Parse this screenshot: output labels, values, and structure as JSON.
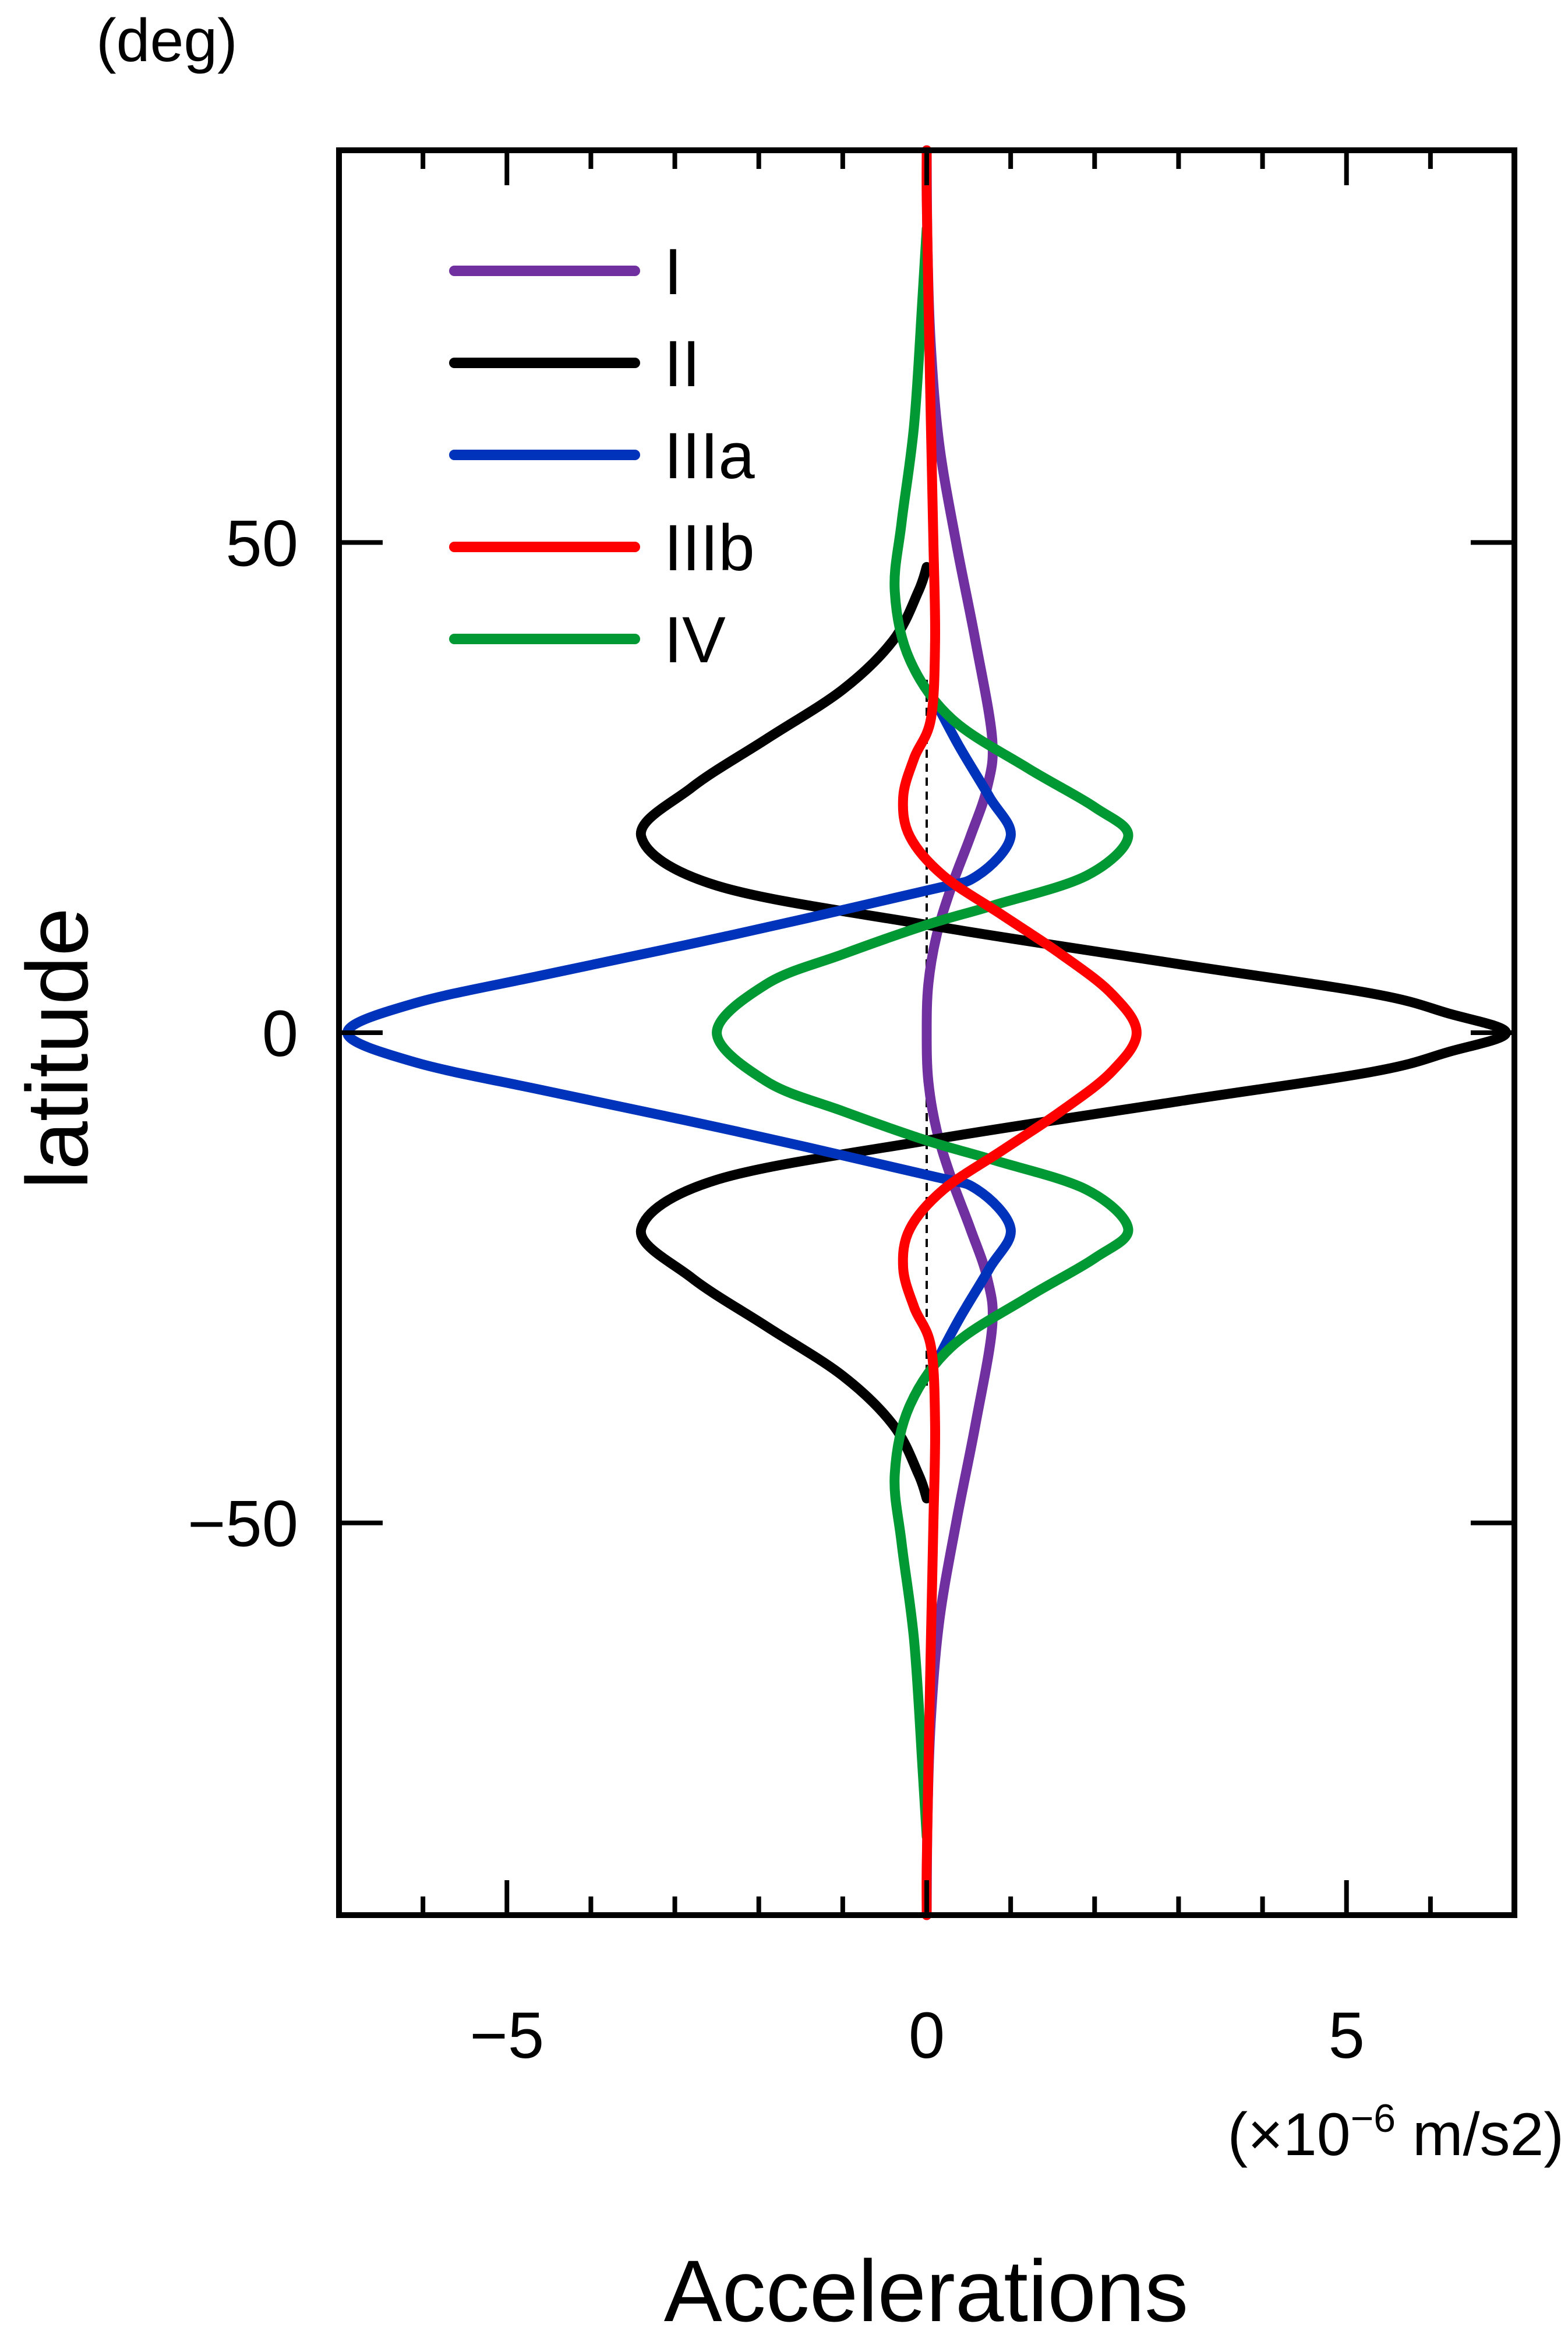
{
  "chart_data": {
    "type": "line",
    "title": "",
    "xlabel": "Accelerations",
    "xunit": "(×10",
    "xunit_exp": "−6",
    "xunit_tail": " m/s2)",
    "ylabel": "latitude",
    "yunit": "(deg)",
    "xlim": [
      -7,
      7
    ],
    "ylim": [
      -90,
      90
    ],
    "x_ticks": [
      -5,
      0,
      5
    ],
    "x_tick_labels": [
      "−5",
      "0",
      "5"
    ],
    "y_ticks": [
      50,
      0,
      -50
    ],
    "y_tick_labels": [
      "50",
      "0",
      "−50"
    ],
    "grid": false,
    "legend_position": "top-left",
    "reference_line_x": 0,
    "series": [
      {
        "name": "I",
        "color": "#7030a0",
        "points": [
          [
            0,
            90
          ],
          [
            0.01,
            80
          ],
          [
            0.05,
            70
          ],
          [
            0.15,
            60
          ],
          [
            0.35,
            50
          ],
          [
            0.58,
            40
          ],
          [
            0.78,
            30
          ],
          [
            0.72,
            25
          ],
          [
            0.52,
            20
          ],
          [
            0.3,
            15
          ],
          [
            0.12,
            10
          ],
          [
            0.02,
            5
          ],
          [
            0,
            0
          ],
          [
            0.02,
            -5
          ],
          [
            0.12,
            -10
          ],
          [
            0.3,
            -15
          ],
          [
            0.52,
            -20
          ],
          [
            0.72,
            -25
          ],
          [
            0.78,
            -30
          ],
          [
            0.58,
            -40
          ],
          [
            0.35,
            -50
          ],
          [
            0.15,
            -60
          ],
          [
            0.05,
            -70
          ],
          [
            0.01,
            -80
          ],
          [
            0,
            -90
          ]
        ]
      },
      {
        "name": "II",
        "color": "#000000",
        "points": [
          [
            0,
            47.5
          ],
          [
            -0.1,
            45
          ],
          [
            -0.4,
            40
          ],
          [
            -1.0,
            35
          ],
          [
            -1.9,
            30
          ],
          [
            -2.8,
            25
          ],
          [
            -3.4,
            20
          ],
          [
            -2.5,
            15
          ],
          [
            0,
            11
          ],
          [
            3.0,
            7
          ],
          [
            5.3,
            4
          ],
          [
            6.2,
            2
          ],
          [
            6.9,
            0
          ],
          [
            6.2,
            -2
          ],
          [
            5.3,
            -4
          ],
          [
            3.0,
            -7
          ],
          [
            0,
            -11
          ],
          [
            -2.5,
            -15
          ],
          [
            -3.4,
            -20
          ],
          [
            -2.8,
            -25
          ],
          [
            -1.9,
            -30
          ],
          [
            -1.0,
            -35
          ],
          [
            -0.4,
            -40
          ],
          [
            -0.1,
            -45
          ],
          [
            0,
            -47.5
          ]
        ]
      },
      {
        "name": "IIIa",
        "color": "#0033bb",
        "points": [
          [
            0.15,
            33
          ],
          [
            0.4,
            29
          ],
          [
            0.75,
            24
          ],
          [
            1.0,
            20
          ],
          [
            0.6,
            16
          ],
          [
            0,
            14.5
          ],
          [
            -2.3,
            10
          ],
          [
            -4.5,
            6
          ],
          [
            -6.1,
            3
          ],
          [
            -6.9,
            0
          ],
          [
            -6.1,
            -3
          ],
          [
            -4.5,
            -6
          ],
          [
            -2.3,
            -10
          ],
          [
            0,
            -14.5
          ],
          [
            0.6,
            -16
          ],
          [
            1.0,
            -20
          ],
          [
            0.75,
            -24
          ],
          [
            0.4,
            -29
          ],
          [
            0.15,
            -33
          ]
        ]
      },
      {
        "name": "IIIb",
        "color": "#ff0000",
        "points": [
          [
            0,
            90
          ],
          [
            0,
            85
          ],
          [
            0.02,
            75
          ],
          [
            0.05,
            62
          ],
          [
            0.08,
            50
          ],
          [
            0.1,
            40
          ],
          [
            0.05,
            32
          ],
          [
            -0.15,
            28
          ],
          [
            -0.28,
            24
          ],
          [
            -0.2,
            20
          ],
          [
            0.2,
            16
          ],
          [
            0.9,
            12
          ],
          [
            1.6,
            8
          ],
          [
            2.2,
            4
          ],
          [
            2.5,
            0
          ],
          [
            2.2,
            -4
          ],
          [
            1.6,
            -8
          ],
          [
            0.9,
            -12
          ],
          [
            0.2,
            -16
          ],
          [
            -0.2,
            -20
          ],
          [
            -0.28,
            -24
          ],
          [
            -0.15,
            -28
          ],
          [
            0.05,
            -32
          ],
          [
            0.1,
            -40
          ],
          [
            0.08,
            -50
          ],
          [
            0.05,
            -62
          ],
          [
            0.02,
            -75
          ],
          [
            0,
            -85
          ],
          [
            0,
            -90
          ]
        ]
      },
      {
        "name": "IV",
        "color": "#009933",
        "points": [
          [
            0,
            82
          ],
          [
            -0.05,
            75
          ],
          [
            -0.15,
            62
          ],
          [
            -0.3,
            52
          ],
          [
            -0.38,
            45
          ],
          [
            -0.2,
            38
          ],
          [
            0.3,
            32
          ],
          [
            1.2,
            27
          ],
          [
            2.0,
            23
          ],
          [
            2.4,
            20
          ],
          [
            1.9,
            16
          ],
          [
            0.8,
            13
          ],
          [
            0,
            11
          ],
          [
            -1.0,
            8
          ],
          [
            -1.9,
            5
          ],
          [
            -2.5,
            0
          ],
          [
            -1.9,
            -5
          ],
          [
            -1.0,
            -8
          ],
          [
            0,
            -11
          ],
          [
            0.8,
            -13
          ],
          [
            1.9,
            -16
          ],
          [
            2.4,
            -20
          ],
          [
            2.0,
            -23
          ],
          [
            1.2,
            -27
          ],
          [
            0.3,
            -32
          ],
          [
            -0.2,
            -38
          ],
          [
            -0.38,
            -45
          ],
          [
            -0.3,
            -52
          ],
          [
            -0.15,
            -62
          ],
          [
            -0.05,
            -75
          ],
          [
            0,
            -82
          ]
        ]
      }
    ]
  }
}
